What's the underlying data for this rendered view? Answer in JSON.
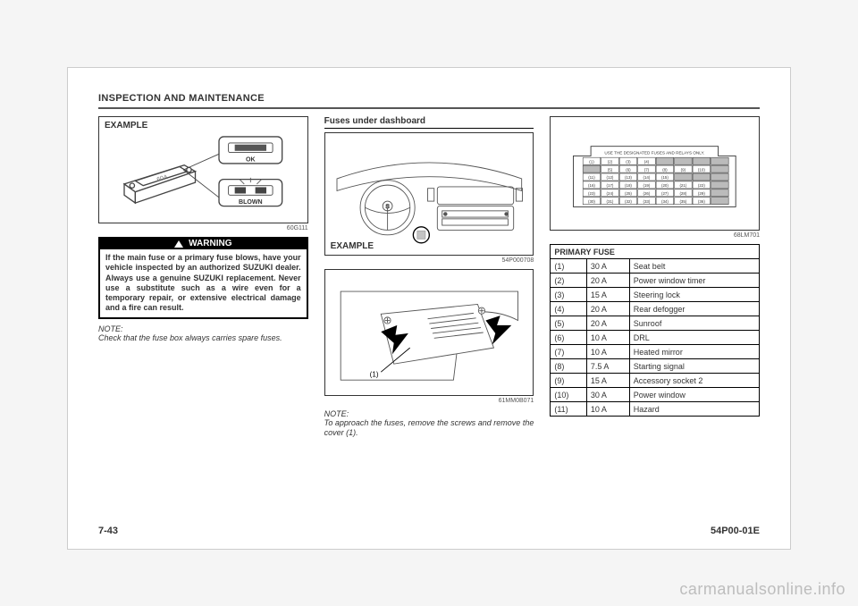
{
  "section_title": "INSPECTION AND MAINTENANCE",
  "page_number": "7-43",
  "doc_code": "54P00-01E",
  "watermark": "carmanualsonline.info",
  "col1": {
    "fig1": {
      "label": "EXAMPLE",
      "code": "60G111",
      "ok": "OK",
      "blown": "BLOWN",
      "fuse_text": "60A",
      "colors": {
        "stroke": "#444444",
        "fill": "#ffffff",
        "spark": "#555555"
      }
    },
    "warning": {
      "head": "WARNING",
      "body": "If the main fuse or a primary fuse blows, have your vehicle inspected by an authorized SUZUKI dealer. Always use a genuine SUZUKI replacement. Never use a substitute such as a wire even for a temporary repair, or extensive electrical damage and a fire can result."
    },
    "note": {
      "label": "NOTE:",
      "text": "Check that the fuse box always carries spare fuses."
    }
  },
  "col2": {
    "heading": "Fuses under dashboard",
    "fig1": {
      "label": "EXAMPLE",
      "code": "54P000708",
      "colors": {
        "stroke": "#555555"
      }
    },
    "fig2": {
      "callout": "(1)",
      "code": "61MM0B071",
      "colors": {
        "stroke": "#555555",
        "arrow": "#000000"
      }
    },
    "note": {
      "label": "NOTE:",
      "text": "To approach the fuses, remove the screws and remove the cover (1)."
    }
  },
  "col3": {
    "fig1": {
      "code": "68LM701",
      "caption": "USE THE DESIGNATED FUSES AND RELAYS ONLY.",
      "rows": [
        [
          "(1)",
          "(2)",
          "(3)",
          "(4)",
          "",
          "",
          "",
          ""
        ],
        [
          "",
          "(5)",
          "(6)",
          "(7)",
          "(8)",
          "(9)",
          "(10)",
          ""
        ],
        [
          "(11)",
          "(12)",
          "(13)",
          "(14)",
          "(15)",
          "",
          "",
          ""
        ],
        [
          "(16)",
          "(17)",
          "(18)",
          "(19)",
          "(20)",
          "(21)",
          "(22)",
          ""
        ],
        [
          "(23)",
          "(24)",
          "(25)",
          "(26)",
          "(27)",
          "(28)",
          "(29)",
          ""
        ],
        [
          "(30)",
          "(31)",
          "(32)",
          "(33)",
          "(34)",
          "(35)",
          "(36)",
          ""
        ]
      ],
      "colors": {
        "stroke": "#333333",
        "fill": "#ffffff",
        "shade": "#bbbbbb"
      }
    },
    "table": {
      "title": "PRIMARY FUSE",
      "rows": [
        {
          "n": "(1)",
          "a": "30 A",
          "d": "Seat belt"
        },
        {
          "n": "(2)",
          "a": "20 A",
          "d": "Power window timer"
        },
        {
          "n": "(3)",
          "a": "15 A",
          "d": "Steering lock"
        },
        {
          "n": "(4)",
          "a": "20 A",
          "d": "Rear defogger"
        },
        {
          "n": "(5)",
          "a": "20 A",
          "d": "Sunroof"
        },
        {
          "n": "(6)",
          "a": "10 A",
          "d": "DRL"
        },
        {
          "n": "(7)",
          "a": "10 A",
          "d": "Heated mirror"
        },
        {
          "n": "(8)",
          "a": "7.5 A",
          "d": "Starting signal"
        },
        {
          "n": "(9)",
          "a": "15 A",
          "d": "Accessory socket 2"
        },
        {
          "n": "(10)",
          "a": "30 A",
          "d": "Power window"
        },
        {
          "n": "(11)",
          "a": "10 A",
          "d": "Hazard"
        }
      ]
    }
  }
}
